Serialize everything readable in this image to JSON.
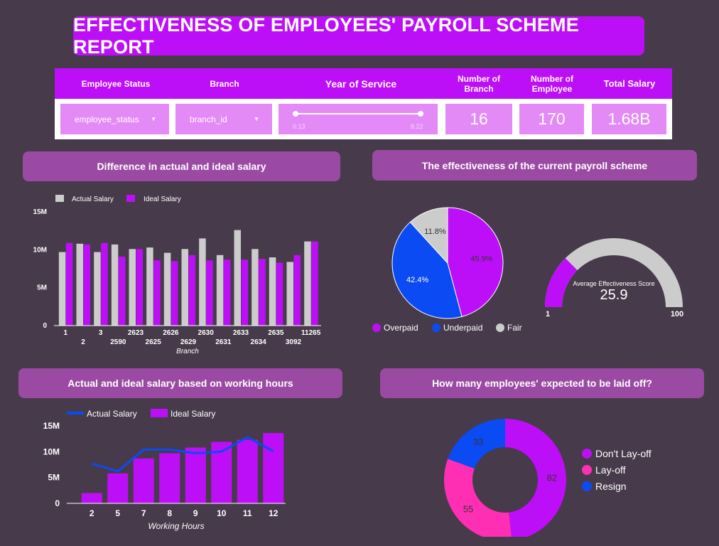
{
  "title": "EFFECTIVENESS OF EMPLOYEES' PAYROLL SCHEME REPORT",
  "filters": {
    "employee_status_label": "Employee Status",
    "branch_label": "Branch",
    "year_of_service_label": "Year of Service",
    "employee_status_value": "employee_status",
    "branch_value": "branch_id",
    "slider_min": "0.13",
    "slider_max": "8.22"
  },
  "kpis": {
    "branch_label_1": "Number of",
    "branch_label_2": "Branch",
    "branch_value": "16",
    "employee_label_1": "Number of",
    "employee_label_2": "Employee",
    "employee_value": "170",
    "salary_label": "Total Salary",
    "salary_value": "1.68B"
  },
  "sections": {
    "diff_title": "Difference in actual and ideal salary",
    "effect_title": "The effectiveness of the current payroll scheme",
    "hours_title": "Actual and ideal salary based on working hours",
    "layoff_title": "How many employees' expected to be laid off?"
  },
  "colors": {
    "purple": "#bd0ff7",
    "grey": "#cccccc",
    "blue": "#0b4bf3",
    "pink": "#ff2fb4"
  },
  "chart_data": [
    {
      "type": "bar",
      "xlabel": "Branch",
      "ylabel": "",
      "ylim": [
        0,
        15000000
      ],
      "yticks": [
        "0",
        "5M",
        "10M",
        "15M"
      ],
      "legend_position": "top-left",
      "categories": [
        "1",
        "2",
        "3",
        "2590",
        "2623",
        "2625",
        "2626",
        "2629",
        "2630",
        "2631",
        "2633",
        "2634",
        "2635",
        "3092",
        "11265"
      ],
      "series": [
        {
          "name": "Actual Salary",
          "values": [
            9700000,
            10800000,
            9700000,
            10700000,
            10100000,
            10300000,
            9600000,
            10100000,
            11500000,
            9300000,
            12600000,
            10100000,
            9000000,
            8400000,
            11100000
          ]
        },
        {
          "name": "Ideal Salary",
          "values": [
            10900000,
            10700000,
            10900000,
            9100000,
            10100000,
            8600000,
            8500000,
            9300000,
            8600000,
            8700000,
            8700000,
            8800000,
            8300000,
            9300000,
            11100000
          ]
        }
      ]
    },
    {
      "type": "pie",
      "legend_position": "bottom",
      "slices": [
        {
          "name": "Overpaid",
          "value": 45.9,
          "label": "45.9%"
        },
        {
          "name": "Underpaid",
          "value": 42.4,
          "label": "42.4%"
        },
        {
          "name": "Fair",
          "value": 11.8,
          "label": "11.8%"
        }
      ]
    },
    {
      "type": "gauge",
      "title": "Average Effectiveness Score",
      "value": 25.9,
      "value_label": "25.9",
      "min": 1,
      "max": 100,
      "min_label": "1",
      "max_label": "100"
    },
    {
      "type": "bar",
      "xlabel": "Working Hours",
      "ylim": [
        0,
        15000000
      ],
      "yticks": [
        "0",
        "5M",
        "10M",
        "15M"
      ],
      "legend_position": "top-left",
      "categories": [
        "2",
        "5",
        "7",
        "8",
        "9",
        "10",
        "11",
        "12"
      ],
      "series": [
        {
          "name": "Actual Salary",
          "kind": "line",
          "values": [
            7700000,
            6200000,
            10400000,
            10400000,
            9700000,
            10000000,
            12800000,
            10100000
          ]
        },
        {
          "name": "Ideal Salary",
          "kind": "bar",
          "values": [
            2000000,
            5800000,
            8700000,
            9700000,
            10800000,
            11900000,
            12300000,
            13600000
          ]
        }
      ]
    },
    {
      "type": "pie",
      "donut": true,
      "legend_position": "right",
      "slices": [
        {
          "name": "Don't Lay-off",
          "value": 82,
          "label": "82"
        },
        {
          "name": "Lay-off",
          "value": 55,
          "label": "55"
        },
        {
          "name": "Resign",
          "value": 33,
          "label": "33"
        }
      ]
    }
  ]
}
